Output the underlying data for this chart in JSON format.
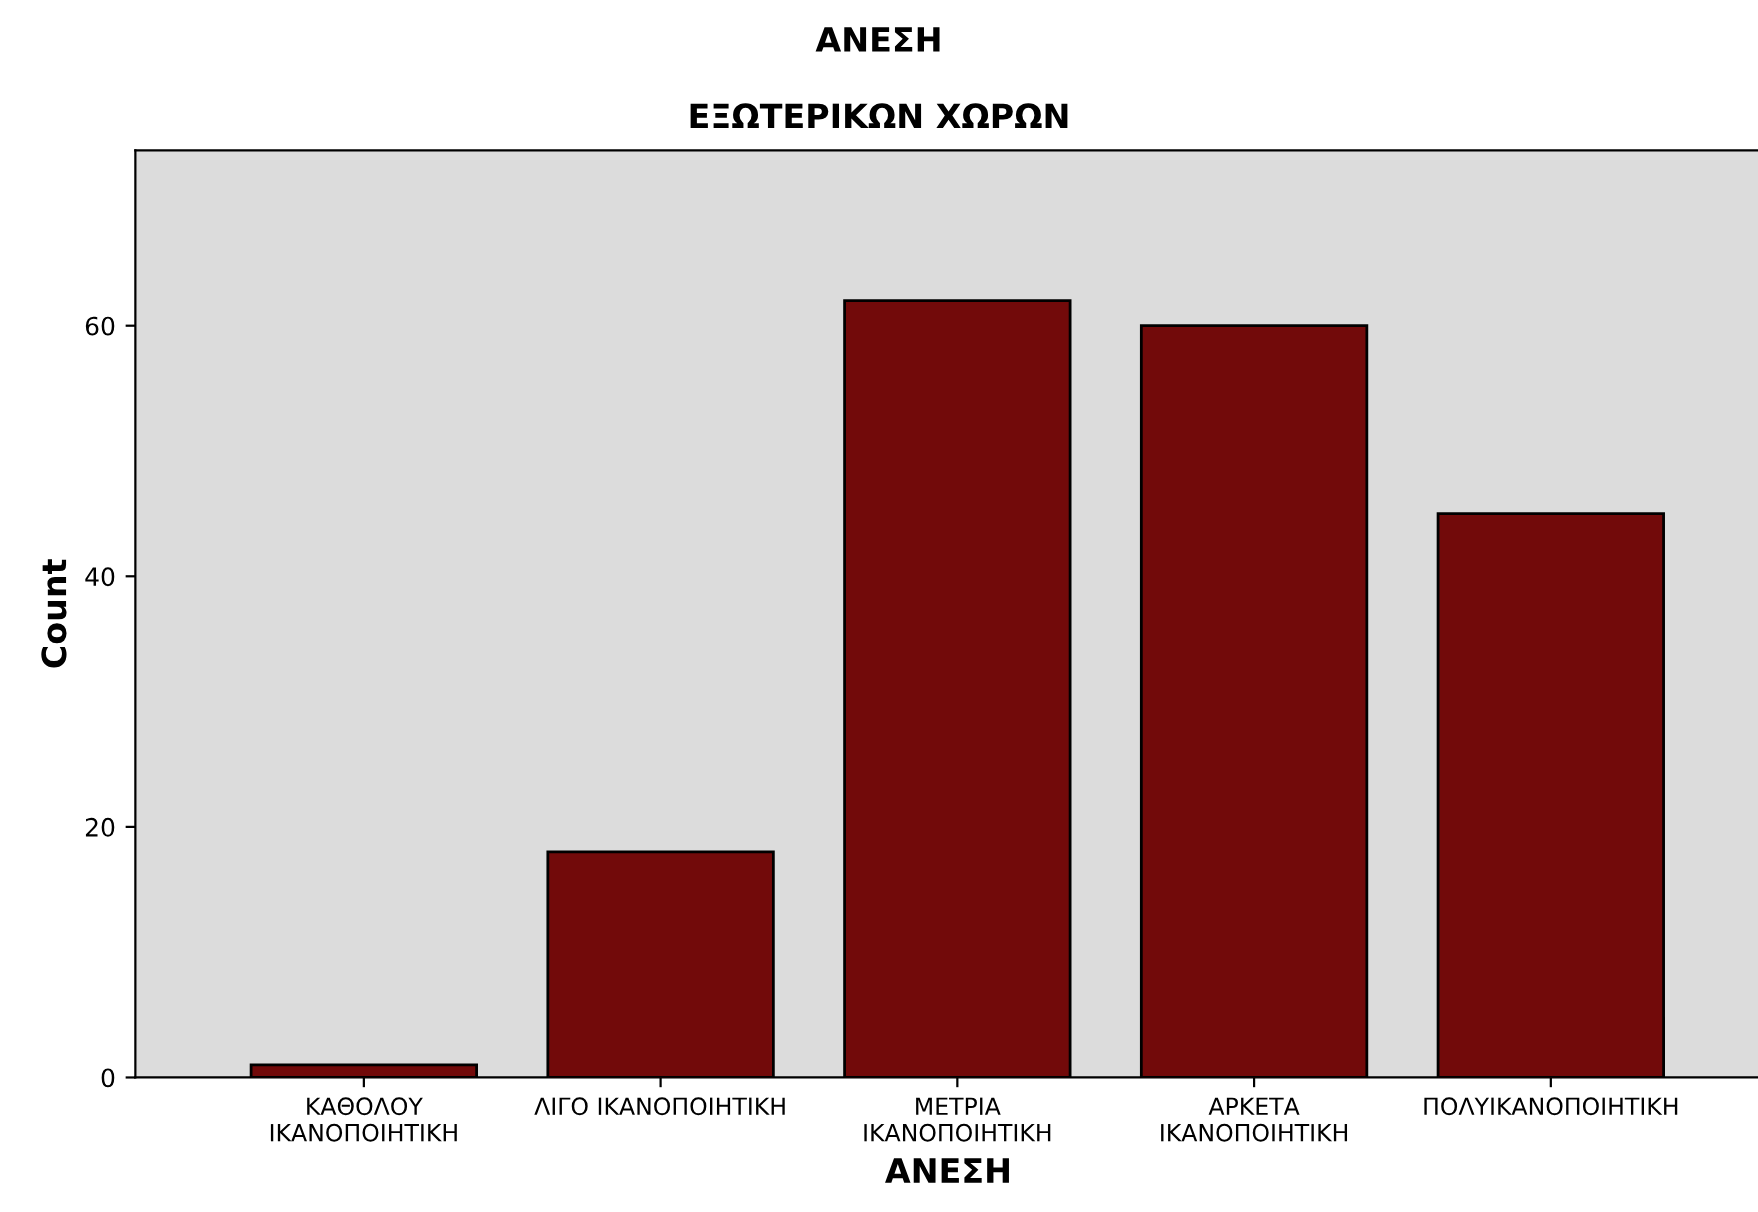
{
  "chart_data": {
    "type": "bar",
    "title": "ΑΝΕΣΗ",
    "subtitle": "ΕΞΩΤΕΡΙΚΩΝ ΧΩΡΩΝ",
    "xlabel": "ΑΝΕΣΗ",
    "ylabel": "Count",
    "categories": [
      "ΚΑΘΟΛΟΥ\nΙΚΑΝΟΠΟΙΗΤΙΚΗ",
      "ΛΙΓΟ ΙΚΑΝΟΠΟΙΗΤΙΚΗ",
      "ΜΕΤΡΙΑ\nΙΚΑΝΟΠΟΙΗΤΙΚΗ",
      "ΑΡΚΕΤΑ\nΙΚΑΝΟΠΟΙΗΤΙΚΗ",
      "ΠΟΛΥΙΚΑΝΟΠΟΙΗΤΙΚΗ"
    ],
    "values": [
      1,
      18,
      62,
      60,
      45
    ],
    "color": "#720a0a",
    "ylim": [
      0,
      74
    ],
    "yticks": [
      0,
      20,
      40,
      60
    ],
    "grid": false,
    "legend": false
  }
}
